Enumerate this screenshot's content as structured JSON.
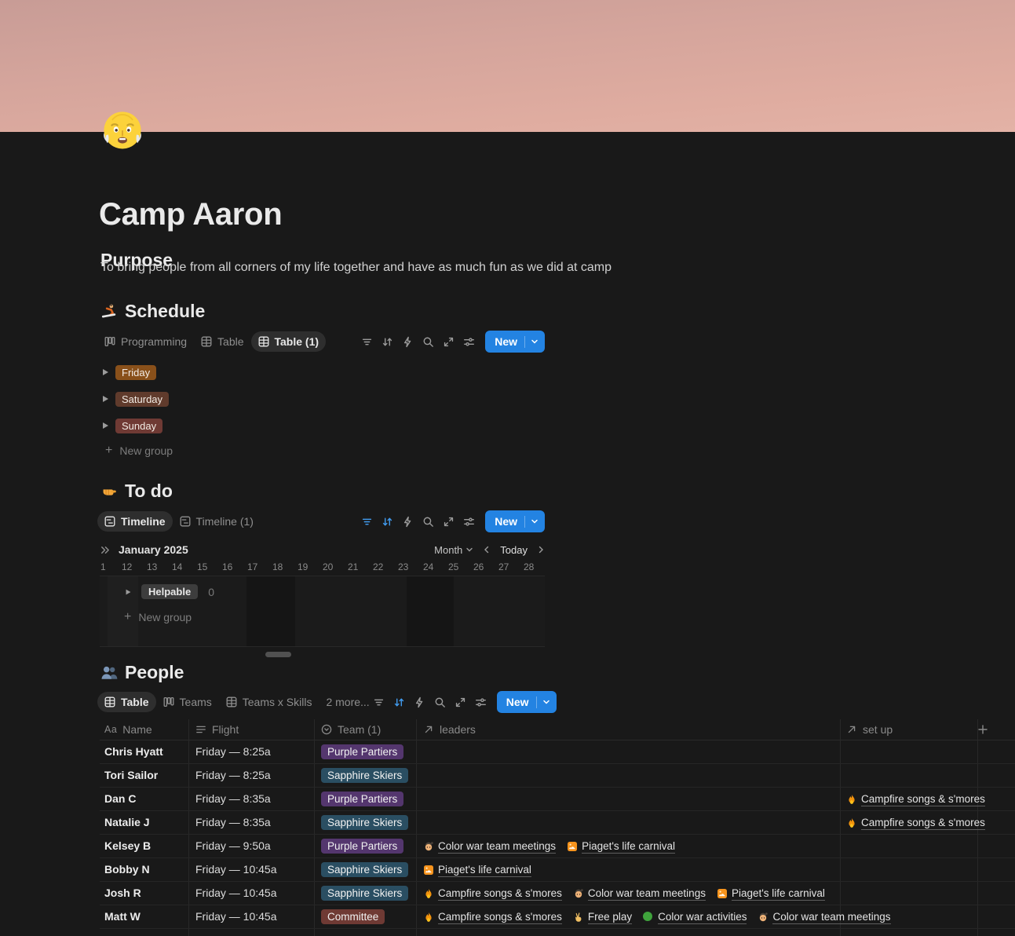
{
  "page": {
    "title": "Camp Aaron",
    "icon": "old-man-emoji"
  },
  "purpose": {
    "heading": "Purpose",
    "body": "To bring people from all corners of my life together and have as much fun as we did at camp"
  },
  "toolbar": {
    "new_label": "New"
  },
  "colors": {
    "accent_blue": "#2383e2",
    "tag_orange": "#89501a",
    "tag_brown": "#603b2c",
    "tag_red": "#6f3a34",
    "tag_purple": "#54366e",
    "tag_blue": "#2a4e62",
    "tag_gray": "#3d3d3d"
  },
  "schedule": {
    "heading": "Schedule",
    "emoji": "snowboarder",
    "tabs": [
      {
        "label": "Programming",
        "icon": "board",
        "active": false
      },
      {
        "label": "Table",
        "icon": "table",
        "active": false
      },
      {
        "label": "Table (1)",
        "icon": "table",
        "active": true
      }
    ],
    "toolbar_state": {
      "filter_active": false,
      "sort_active": false
    },
    "groups": [
      {
        "label": "Friday",
        "color": "#89501a"
      },
      {
        "label": "Saturday",
        "color": "#603b2c"
      },
      {
        "label": "Sunday",
        "color": "#6f3a34"
      }
    ],
    "new_group_label": "New group"
  },
  "todo": {
    "heading": "To do",
    "emoji": "fist",
    "tabs": [
      {
        "label": "Timeline",
        "icon": "timeline",
        "active": true
      },
      {
        "label": "Timeline (1)",
        "icon": "timeline",
        "active": false
      }
    ],
    "toolbar_state": {
      "filter_active": true,
      "sort_active": true
    },
    "timeline": {
      "month_label": "January 2025",
      "zoom_label": "Month",
      "today_label": "Today",
      "dates": [
        "1",
        "12",
        "13",
        "14",
        "15",
        "16",
        "17",
        "18",
        "19",
        "20",
        "21",
        "22",
        "23",
        "24",
        "25",
        "26",
        "27",
        "28"
      ],
      "group": {
        "label": "Helpable",
        "count": "0",
        "color": "#3d3d3d"
      },
      "new_group_label": "New group"
    }
  },
  "people": {
    "heading": "People",
    "emoji": "busts",
    "tabs": [
      {
        "label": "Table",
        "icon": "table",
        "active": true
      },
      {
        "label": "Teams",
        "icon": "board",
        "active": false
      },
      {
        "label": "Teams x Skills",
        "icon": "table",
        "active": false
      }
    ],
    "more_label": "2 more...",
    "toolbar_state": {
      "filter_active": false,
      "sort_active": true
    },
    "table": {
      "columns": [
        {
          "label": "Name",
          "icon": "aa"
        },
        {
          "label": "Flight",
          "icon": "lines"
        },
        {
          "label": "Team (1)",
          "icon": "select"
        },
        {
          "label": "leaders",
          "icon": "relation"
        },
        {
          "label": "set up",
          "icon": "relation"
        }
      ],
      "rows": [
        {
          "name": "Chris Hyatt",
          "flight": "Friday — 8:25a",
          "team": {
            "label": "Purple Partiers",
            "color": "#54366e"
          },
          "leaders": [],
          "setup": []
        },
        {
          "name": "Tori Sailor",
          "flight": "Friday — 8:25a",
          "team": {
            "label": "Sapphire Skiers",
            "color": "#2a4e62"
          },
          "leaders": [],
          "setup": []
        },
        {
          "name": "Dan C",
          "flight": "Friday — 8:35a",
          "team": {
            "label": "Purple Partiers",
            "color": "#54366e"
          },
          "leaders": [],
          "setup": [
            {
              "icon": "fire",
              "label": "Campfire songs & s'mores"
            }
          ]
        },
        {
          "name": "Natalie J",
          "flight": "Friday — 8:35a",
          "team": {
            "label": "Sapphire Skiers",
            "color": "#2a4e62"
          },
          "leaders": [],
          "setup": [
            {
              "icon": "fire",
              "label": "Campfire songs & s'mores"
            }
          ]
        },
        {
          "name": "Kelsey B",
          "flight": "Friday — 9:50a",
          "team": {
            "label": "Purple Partiers",
            "color": "#54366e"
          },
          "leaders": [
            {
              "icon": "artist",
              "label": "Color war team meetings"
            },
            {
              "icon": "picture",
              "label": "Piaget's life carnival"
            }
          ],
          "setup": []
        },
        {
          "name": "Bobby N",
          "flight": "Friday — 10:45a",
          "team": {
            "label": "Sapphire Skiers",
            "color": "#2a4e62"
          },
          "leaders": [
            {
              "icon": "picture",
              "label": "Piaget's life carnival"
            }
          ],
          "setup": []
        },
        {
          "name": "Josh R",
          "flight": "Friday — 10:45a",
          "team": {
            "label": "Sapphire Skiers",
            "color": "#2a4e62"
          },
          "leaders": [
            {
              "icon": "fire",
              "label": "Campfire songs & s'mores"
            },
            {
              "icon": "artist",
              "label": "Color war team meetings"
            },
            {
              "icon": "picture",
              "label": "Piaget's life carnival"
            }
          ],
          "setup": []
        },
        {
          "name": "Matt W",
          "flight": "Friday — 10:45a",
          "team": {
            "label": "Committee",
            "color": "#6f3a34"
          },
          "leaders": [
            {
              "icon": "fire",
              "label": "Campfire songs & s'mores"
            },
            {
              "icon": "victory",
              "label": "Free play"
            },
            {
              "icon": "green-circle",
              "label": "Color war activities"
            },
            {
              "icon": "artist",
              "label": "Color war team meetings"
            }
          ],
          "setup": []
        }
      ]
    }
  }
}
